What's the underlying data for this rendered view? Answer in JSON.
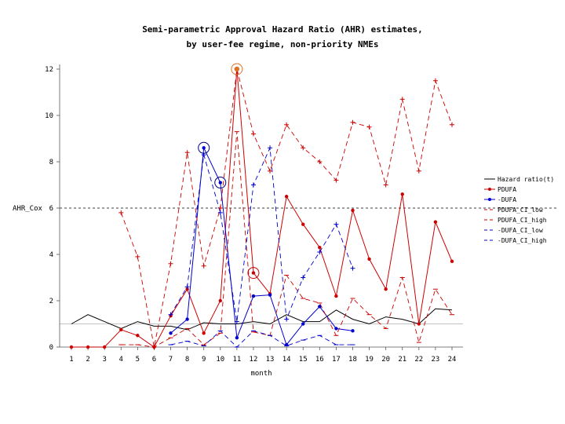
{
  "chart_data": {
    "type": "line",
    "title_line1": "Semi-parametric Approval Hazard Ratio (AHR) estimates,",
    "title_line2": "by user-fee regime, non-priority NMEs",
    "xlabel": "month",
    "ylabel": "",
    "reference_label": "AHR_Cox",
    "reference_value": 6,
    "xlim": [
      0.5,
      24.5
    ],
    "ylim": [
      0,
      12
    ],
    "x_ticks": [
      1,
      2,
      3,
      4,
      5,
      6,
      7,
      8,
      9,
      10,
      11,
      12,
      13,
      14,
      15,
      16,
      17,
      18,
      19,
      20,
      21,
      22,
      23,
      24
    ],
    "y_ticks": [
      0,
      2,
      4,
      6,
      8,
      10,
      12
    ],
    "legend_position": "right",
    "series": [
      {
        "name": "Hazard ratio(t)",
        "color": "#000000",
        "style": "solid",
        "marker": "none",
        "x": [
          1,
          2,
          3,
          4,
          5,
          6,
          7,
          8,
          9,
          10,
          11,
          12,
          13,
          14,
          15,
          16,
          17,
          18,
          19,
          20,
          21,
          22,
          23,
          24
        ],
        "values": [
          1.0,
          1.4,
          1.1,
          0.8,
          1.1,
          0.9,
          0.9,
          0.75,
          1.05,
          1.0,
          1.0,
          1.1,
          1.0,
          1.4,
          1.1,
          1.1,
          1.6,
          1.2,
          1.0,
          1.3,
          1.2,
          1.0,
          1.65,
          1.6
        ]
      },
      {
        "name": "PDUFA",
        "color": "#cc0000",
        "style": "solid",
        "marker": "dot",
        "x": [
          1,
          2,
          3,
          4,
          5,
          6,
          7,
          8,
          9,
          10,
          11,
          12,
          13,
          14,
          15,
          16,
          17,
          18,
          19,
          20,
          21,
          22,
          23,
          24
        ],
        "values": [
          0,
          0,
          0,
          0.75,
          0.5,
          0,
          1.35,
          2.5,
          0.6,
          2.0,
          12.0,
          3.2,
          2.3,
          6.5,
          5.3,
          4.3,
          2.2,
          5.9,
          3.8,
          2.5,
          6.6,
          1.0,
          5.4,
          3.7
        ]
      },
      {
        "name": "-DUFA",
        "color": "#0000cc",
        "style": "solid",
        "marker": "dot",
        "x": [
          7,
          8,
          9,
          10,
          11,
          12,
          13,
          14,
          15,
          16,
          17,
          18
        ],
        "values": [
          0.6,
          1.2,
          8.6,
          7.1,
          0.4,
          2.2,
          2.25,
          0.1,
          1.0,
          1.75,
          0.8,
          0.7
        ]
      },
      {
        "name": "PDUFA_CI_low",
        "color": "#cc0000",
        "style": "dash",
        "marker": "none",
        "x": [
          4,
          5,
          6,
          7,
          8,
          9,
          10,
          11,
          12,
          13,
          14,
          15,
          16,
          17,
          18,
          19,
          20,
          21,
          22,
          23,
          24
        ],
        "values": [
          0.1,
          0.1,
          0,
          0.4,
          0.8,
          0.1,
          0.6,
          9.3,
          0.65,
          0.5,
          3.1,
          2.1,
          1.9,
          0.5,
          2.1,
          1.4,
          0.8,
          3.0,
          0.2,
          2.5,
          1.4
        ]
      },
      {
        "name": "PDUFA_CI_high",
        "color": "#cc0000",
        "style": "dash",
        "marker": "none",
        "x": [
          4,
          5,
          6,
          7,
          8,
          9,
          10,
          11,
          12,
          13,
          14,
          15,
          16,
          17,
          18,
          19,
          20,
          21,
          22,
          23,
          24
        ],
        "values": [
          5.8,
          3.9,
          0,
          3.6,
          8.4,
          3.5,
          6.0,
          12.0,
          9.2,
          7.6,
          9.6,
          8.6,
          8.0,
          7.2,
          9.7,
          9.5,
          7.0,
          10.7,
          7.6,
          11.5,
          9.6
        ]
      },
      {
        "name": "-DUFA_CI_low",
        "color": "#0000cc",
        "style": "dash",
        "marker": "none",
        "x": [
          7,
          8,
          9,
          10,
          11,
          12,
          13,
          14,
          15,
          16,
          17,
          18
        ],
        "values": [
          0.1,
          0.25,
          0.05,
          0.7,
          0,
          0.7,
          0.5,
          0.05,
          0.3,
          0.5,
          0.1,
          0.1
        ]
      },
      {
        "name": "-DUFA_CI_high",
        "color": "#0000cc",
        "style": "dash",
        "marker": "none",
        "x": [
          7,
          8,
          9,
          10,
          11,
          12,
          13,
          14,
          15,
          16,
          17,
          18
        ],
        "values": [
          1.4,
          2.6,
          8.3,
          5.8,
          1.1,
          7.0,
          8.6,
          1.2,
          3.0,
          4.1,
          5.3,
          3.4
        ]
      }
    ],
    "annotations": "circled points at months 9, 10, 11, 12"
  }
}
